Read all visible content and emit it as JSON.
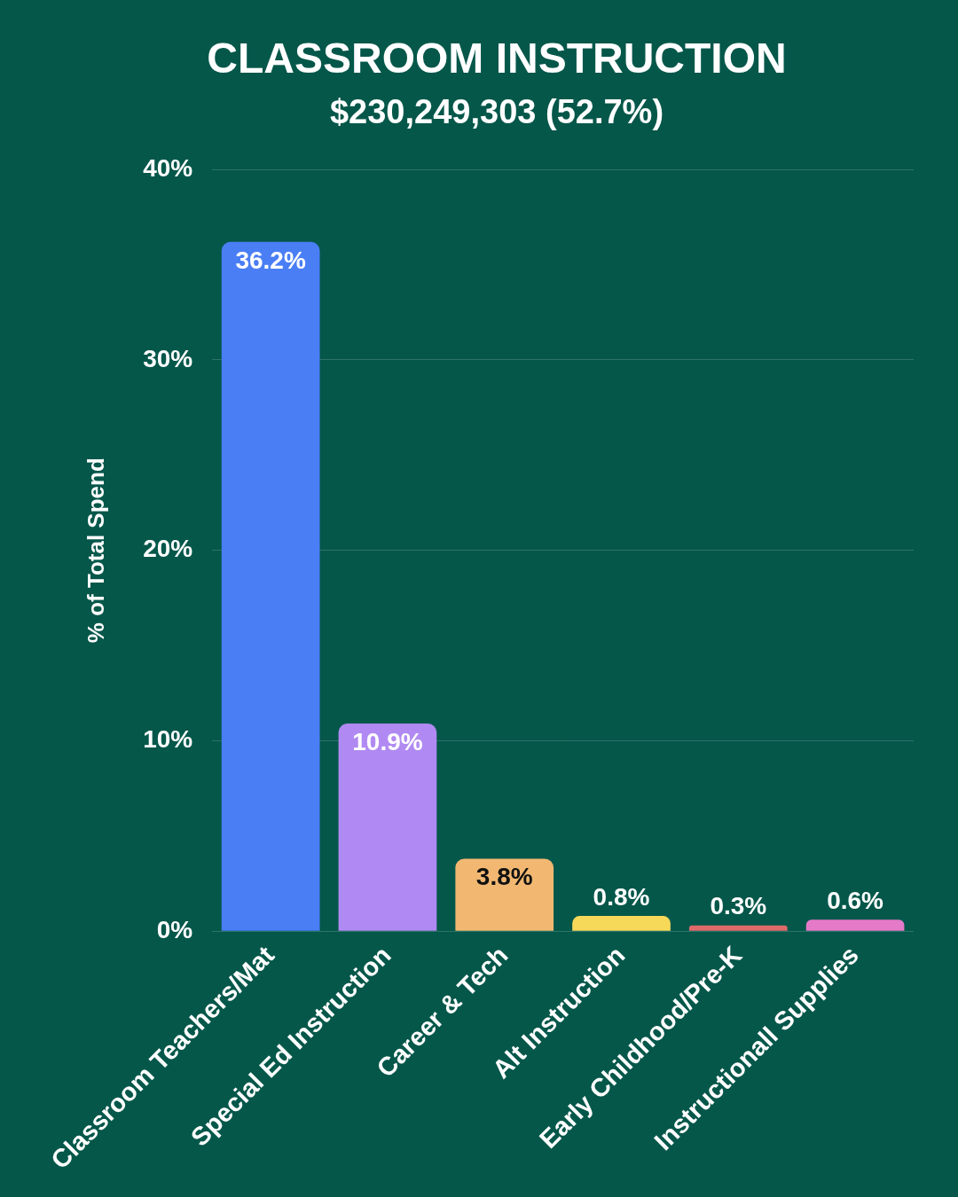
{
  "chart_data": {
    "type": "bar",
    "title": "CLASSROOM INSTRUCTION",
    "subtitle": "$230,249,303 (52.7%)",
    "y_label": "% of Total Spend",
    "categories": [
      "Classroom Teachers/Mat",
      "Special Ed Instruction",
      "Career & Tech",
      "Alt Instruction",
      "Early Childhood/Pre-K",
      "Instructionall Supplies"
    ],
    "values": [
      36.2,
      10.9,
      3.8,
      0.8,
      0.3,
      0.6
    ],
    "value_labels": [
      "36.2%",
      "10.9%",
      "3.8%",
      "0.8%",
      "0.3%",
      "0.6%"
    ],
    "colors": [
      "#4a7ef5",
      "#b08af2",
      "#f2b872",
      "#f7d95a",
      "#e06a6a",
      "#e57ac8"
    ],
    "ylim": [
      0,
      40
    ],
    "yticks": [
      {
        "value": 0,
        "label": "0%"
      },
      {
        "value": 10,
        "label": "10%"
      },
      {
        "value": 20,
        "label": "20%"
      },
      {
        "value": 30,
        "label": "30%"
      },
      {
        "value": 40,
        "label": "40%"
      }
    ],
    "grid": true,
    "data_labels": true
  }
}
